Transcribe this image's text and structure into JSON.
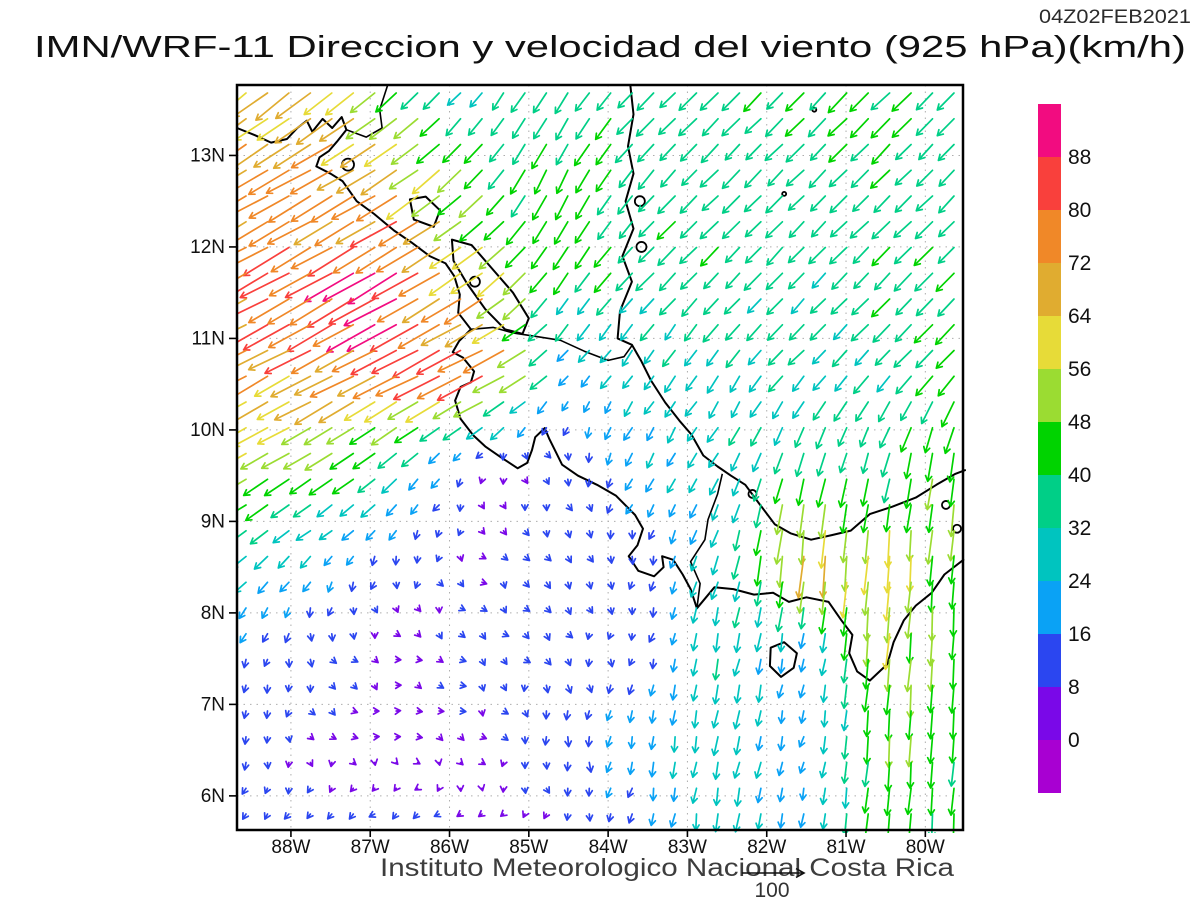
{
  "header": {
    "title": "IMN/WRF-11 Direccion y velocidad del viento (925 hPa)(km/h)",
    "timestamp": "04Z02FEB2021"
  },
  "footer": {
    "credit": "Instituto Meteorologico Nacional Costa Rica",
    "reference_value": "100"
  },
  "axes": {
    "x_ticks": [
      {
        "label": "88W",
        "value": -88
      },
      {
        "label": "87W",
        "value": -87
      },
      {
        "label": "86W",
        "value": -86
      },
      {
        "label": "85W",
        "value": -85
      },
      {
        "label": "84W",
        "value": -84
      },
      {
        "label": "83W",
        "value": -83
      },
      {
        "label": "82W",
        "value": -82
      },
      {
        "label": "81W",
        "value": -81
      },
      {
        "label": "80W",
        "value": -80
      }
    ],
    "y_ticks": [
      {
        "label": "13N",
        "value": 13
      },
      {
        "label": "12N",
        "value": 12
      },
      {
        "label": "11N",
        "value": 11
      },
      {
        "label": "10N",
        "value": 10
      },
      {
        "label": "9N",
        "value": 9
      },
      {
        "label": "8N",
        "value": 8
      },
      {
        "label": "7N",
        "value": 7
      },
      {
        "label": "6N",
        "value": 6
      }
    ]
  },
  "colorbar": {
    "labels_top_to_bottom": [
      "88",
      "80",
      "72",
      "64",
      "56",
      "48",
      "40",
      "32",
      "24",
      "16",
      "8",
      "0"
    ],
    "levels": [
      0,
      8,
      16,
      24,
      32,
      40,
      48,
      56,
      64,
      72,
      80,
      88
    ],
    "colors_ascending": [
      "#A800D2",
      "#7A08E8",
      "#2B46F0",
      "#0AA2F5",
      "#00C4BF",
      "#00CF87",
      "#00D300",
      "#9BDC32",
      "#E7DB38",
      "#E0AC30",
      "#F08828",
      "#F9403C",
      "#F20C80"
    ]
  },
  "chart_data": {
    "type": "vector_field",
    "variable": "wind direction and speed",
    "level": "925 hPa",
    "units": "km/h",
    "reference_arrow_kmh": 100,
    "extent": {
      "lon_min": -88.68,
      "lon_max": -79.525,
      "lat_min": 5.627,
      "lat_max": 13.77
    },
    "grid_lats": [
      13.8,
      12.78,
      11.75,
      10.73,
      9.7,
      8.68,
      7.65,
      6.63,
      5.6
    ],
    "grid_lons": [
      -88.7,
      -87.68,
      -86.66,
      -85.63,
      -84.61,
      -83.59,
      -82.57,
      -81.54,
      -80.52,
      -79.5
    ],
    "u_kmh": [
      [
        -50,
        -52,
        -30,
        -14,
        -22,
        -25,
        -26,
        -28,
        -30,
        -26
      ],
      [
        -62,
        -64,
        -55,
        -30,
        -18,
        -24,
        -26,
        -25,
        -28,
        -22
      ],
      [
        -70,
        -72,
        -78,
        -48,
        -20,
        -25,
        -26,
        -22,
        -27,
        -28
      ],
      [
        -62,
        -65,
        -70,
        -80,
        -17,
        -15,
        -18,
        -22,
        -24,
        -28
      ],
      [
        -50,
        -42,
        -28,
        -4,
        5,
        -12,
        -14,
        -10,
        -10,
        -6
      ],
      [
        -25,
        -16,
        -5,
        6,
        8,
        -3,
        -8,
        -6,
        -4,
        -3
      ],
      [
        -6,
        2,
        7,
        6,
        5,
        -4,
        -6,
        -4,
        -4,
        -3
      ],
      [
        -4,
        5,
        7,
        6,
        0,
        -3,
        -5,
        -4,
        -4,
        -3
      ],
      [
        -3,
        -8,
        -12,
        -8,
        1,
        -3,
        -5,
        -4,
        -3,
        -3
      ]
    ],
    "v_kmh": [
      [
        -40,
        -40,
        -28,
        -20,
        -36,
        -25,
        -26,
        -28,
        -30,
        -26
      ],
      [
        -35,
        -36,
        -35,
        -32,
        -38,
        -28,
        -26,
        -25,
        -28,
        -22
      ],
      [
        -38,
        -40,
        -45,
        -34,
        -32,
        -27,
        -26,
        -24,
        -27,
        -28
      ],
      [
        -33,
        -35,
        -36,
        -40,
        -18,
        -22,
        -25,
        -22,
        -26,
        -30
      ],
      [
        -28,
        -26,
        -22,
        -8,
        -9,
        -20,
        -24,
        -35,
        -34,
        -50
      ],
      [
        -22,
        -16,
        -14,
        -4,
        -8,
        -12,
        -27,
        -64,
        -60,
        -47
      ],
      [
        -14,
        -12,
        -3,
        -8,
        -10,
        -9,
        -33,
        -19,
        -53,
        -43
      ],
      [
        -12,
        -6,
        -2,
        -5,
        -14,
        -21,
        -29,
        -17,
        -47,
        -41
      ],
      [
        -9,
        -8,
        -6,
        -3,
        -7,
        -15,
        -31,
        -21,
        -43,
        -39
      ]
    ],
    "arrow_grid": {
      "cols": 34,
      "rows": 29
    }
  },
  "map": {
    "coastlines": [
      [
        [
          -88.68,
          13.3
        ],
        [
          -88.45,
          13.22
        ],
        [
          -88.25,
          13.14
        ],
        [
          -88.05,
          13.18
        ],
        [
          -87.92,
          13.3
        ],
        [
          -87.8,
          13.38
        ],
        [
          -87.73,
          13.26
        ],
        [
          -87.6,
          13.4
        ],
        [
          -87.48,
          13.3
        ],
        [
          -87.36,
          13.42
        ],
        [
          -87.3,
          13.28
        ],
        [
          -87.42,
          13.15
        ],
        [
          -87.52,
          13.05
        ],
        [
          -87.64,
          12.98
        ],
        [
          -87.68,
          12.88
        ],
        [
          -87.5,
          12.8
        ],
        [
          -87.35,
          12.72
        ],
        [
          -87.17,
          12.5
        ],
        [
          -86.95,
          12.36
        ],
        [
          -86.7,
          12.18
        ],
        [
          -86.48,
          12.05
        ],
        [
          -86.25,
          11.9
        ],
        [
          -86.05,
          11.82
        ],
        [
          -85.94,
          11.68
        ],
        [
          -85.87,
          11.48
        ],
        [
          -85.89,
          11.28
        ],
        [
          -85.73,
          11.1
        ],
        [
          -85.88,
          10.97
        ],
        [
          -85.96,
          10.85
        ],
        [
          -85.83,
          10.79
        ],
        [
          -85.69,
          10.64
        ],
        [
          -85.73,
          10.52
        ],
        [
          -85.86,
          10.47
        ],
        [
          -85.93,
          10.32
        ],
        [
          -85.86,
          10.12
        ],
        [
          -85.7,
          9.94
        ],
        [
          -85.55,
          9.82
        ],
        [
          -85.35,
          9.7
        ],
        [
          -85.14,
          9.58
        ],
        [
          -85.02,
          9.64
        ],
        [
          -84.96,
          9.78
        ],
        [
          -84.92,
          9.92
        ],
        [
          -84.8,
          10.02
        ],
        [
          -84.74,
          9.9
        ],
        [
          -84.66,
          9.76
        ],
        [
          -84.58,
          9.62
        ],
        [
          -84.38,
          9.5
        ],
        [
          -84.14,
          9.4
        ],
        [
          -83.9,
          9.28
        ],
        [
          -83.66,
          9.07
        ],
        [
          -83.56,
          8.92
        ],
        [
          -83.63,
          8.74
        ],
        [
          -83.74,
          8.62
        ],
        [
          -83.62,
          8.46
        ],
        [
          -83.42,
          8.4
        ],
        [
          -83.3,
          8.5
        ],
        [
          -83.32,
          8.62
        ],
        [
          -83.18,
          8.58
        ],
        [
          -83.06,
          8.42
        ],
        [
          -82.96,
          8.26
        ],
        [
          -82.88,
          8.05
        ],
        [
          -82.66,
          8.28
        ],
        [
          -82.42,
          8.26
        ],
        [
          -82.16,
          8.2
        ],
        [
          -81.92,
          8.22
        ],
        [
          -81.72,
          8.12
        ],
        [
          -81.5,
          8.17
        ],
        [
          -81.22,
          8.12
        ],
        [
          -81.06,
          7.92
        ],
        [
          -80.92,
          7.76
        ],
        [
          -80.96,
          7.56
        ],
        [
          -80.86,
          7.36
        ],
        [
          -80.7,
          7.26
        ],
        [
          -80.48,
          7.44
        ],
        [
          -80.4,
          7.68
        ],
        [
          -80.27,
          7.92
        ],
        [
          -80.12,
          8.08
        ],
        [
          -79.92,
          8.22
        ],
        [
          -79.76,
          8.42
        ],
        [
          -79.52,
          8.58
        ]
      ],
      [
        [
          -83.72,
          13.77
        ],
        [
          -83.68,
          13.45
        ],
        [
          -83.75,
          13.1
        ],
        [
          -83.68,
          12.8
        ],
        [
          -83.78,
          12.5
        ],
        [
          -83.68,
          12.2
        ],
        [
          -83.82,
          11.9
        ],
        [
          -83.7,
          11.62
        ],
        [
          -83.85,
          11.3
        ],
        [
          -83.88,
          11.0
        ],
        [
          -83.7,
          10.93
        ],
        [
          -83.58,
          10.75
        ],
        [
          -83.46,
          10.54
        ],
        [
          -83.28,
          10.3
        ],
        [
          -83.1,
          10.1
        ],
        [
          -82.95,
          9.95
        ],
        [
          -82.8,
          9.72
        ],
        [
          -82.62,
          9.6
        ],
        [
          -82.45,
          9.5
        ],
        [
          -82.27,
          9.4
        ],
        [
          -82.1,
          9.2
        ],
        [
          -81.9,
          8.97
        ],
        [
          -81.7,
          8.87
        ],
        [
          -81.44,
          8.8
        ],
        [
          -81.18,
          8.85
        ],
        [
          -80.94,
          8.9
        ],
        [
          -80.7,
          9.08
        ],
        [
          -80.42,
          9.16
        ],
        [
          -80.12,
          9.26
        ],
        [
          -79.86,
          9.4
        ],
        [
          -79.62,
          9.52
        ],
        [
          -79.5,
          9.56
        ]
      ]
    ],
    "borders": [
      [
        [
          -85.73,
          11.1
        ],
        [
          -85.45,
          11.12
        ],
        [
          -85.2,
          11.06
        ],
        [
          -84.9,
          11.02
        ],
        [
          -84.6,
          10.98
        ],
        [
          -84.3,
          10.86
        ],
        [
          -84.0,
          10.76
        ],
        [
          -83.8,
          10.8
        ],
        [
          -83.7,
          10.92
        ]
      ],
      [
        [
          -82.88,
          8.05
        ],
        [
          -82.84,
          8.32
        ],
        [
          -82.96,
          8.56
        ],
        [
          -82.78,
          8.8
        ],
        [
          -82.74,
          9.02
        ],
        [
          -82.62,
          9.3
        ],
        [
          -82.56,
          9.52
        ]
      ],
      [
        [
          -87.3,
          13.28
        ],
        [
          -87.05,
          13.2
        ],
        [
          -86.85,
          13.3
        ],
        [
          -86.88,
          13.5
        ],
        [
          -86.78,
          13.77
        ]
      ]
    ],
    "lakes": [
      [
        [
          -85.97,
          12.08
        ],
        [
          -85.72,
          12.02
        ],
        [
          -85.48,
          11.78
        ],
        [
          -85.2,
          11.5
        ],
        [
          -85.0,
          11.22
        ],
        [
          -85.08,
          11.05
        ],
        [
          -85.3,
          11.1
        ],
        [
          -85.55,
          11.32
        ],
        [
          -85.78,
          11.6
        ],
        [
          -85.95,
          11.85
        ]
      ],
      [
        [
          -86.5,
          12.52
        ],
        [
          -86.3,
          12.55
        ],
        [
          -86.12,
          12.4
        ],
        [
          -86.2,
          12.22
        ],
        [
          -86.45,
          12.3
        ]
      ],
      [
        [
          -81.95,
          7.62
        ],
        [
          -81.78,
          7.68
        ],
        [
          -81.62,
          7.56
        ],
        [
          -81.66,
          7.4
        ],
        [
          -81.82,
          7.3
        ],
        [
          -81.96,
          7.42
        ]
      ]
    ],
    "islands": [
      {
        "lon": -87.28,
        "lat": 12.9,
        "r": 6
      },
      {
        "lon": -85.68,
        "lat": 11.62,
        "r": 5
      },
      {
        "lon": -83.6,
        "lat": 12.5,
        "r": 5
      },
      {
        "lon": -83.58,
        "lat": 12.0,
        "r": 5
      },
      {
        "lon": -81.78,
        "lat": 12.58,
        "r": 2
      },
      {
        "lon": -81.4,
        "lat": 13.5,
        "r": 2
      },
      {
        "lon": -82.18,
        "lat": 9.3,
        "r": 4
      },
      {
        "lon": -79.74,
        "lat": 9.18,
        "r": 4
      },
      {
        "lon": -79.6,
        "lat": 8.92,
        "r": 4
      }
    ]
  },
  "style_colors": {
    "coast": "#000000",
    "grid_dots": "#ADADAD",
    "frame": "#000000"
  }
}
